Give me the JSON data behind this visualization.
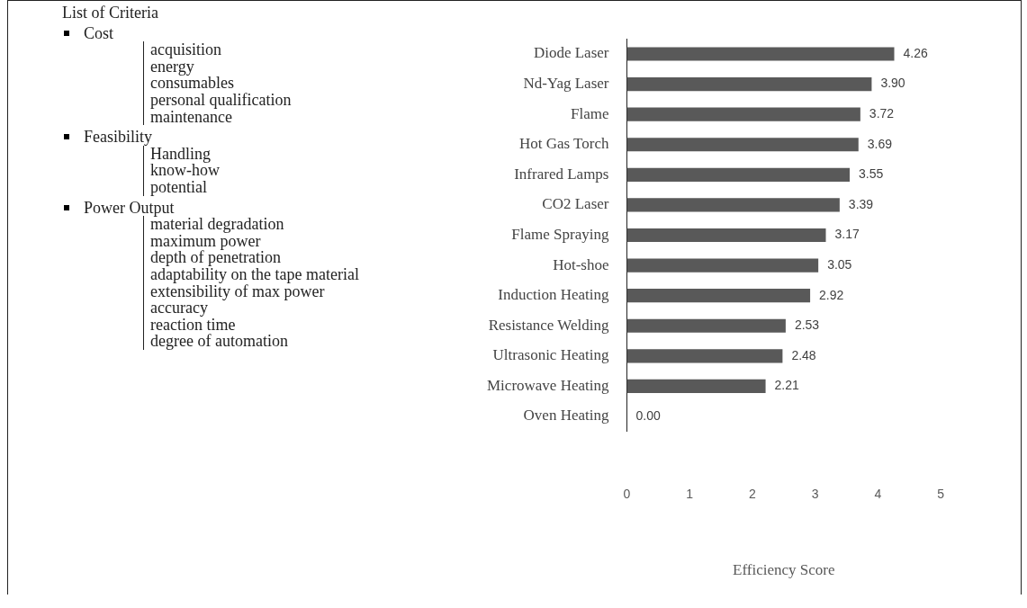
{
  "chart_data": [
    {
      "type": "other",
      "title": "List of Criteria"
    },
    {
      "type": "other",
      "title": "Cost",
      "annotations": [
        "acquisition",
        "energy",
        "consumables",
        "personal qualification",
        "maintenance"
      ]
    },
    {
      "type": "other",
      "title": "Feasibility",
      "annotations": [
        "Handling",
        "know-how",
        "potential"
      ]
    },
    {
      "type": "other",
      "title": "Power Output",
      "annotations": [
        "material degradation",
        "maximum power",
        "depth of penetration",
        "adaptability on the tape material",
        "extensibility of max power",
        "accuracy",
        "reaction time",
        "degree of automation"
      ]
    },
    {
      "type": "bar",
      "orientation": "horizontal",
      "categories": [
        "Diode Laser",
        "Nd-Yag Laser",
        "Flame",
        "Hot Gas Torch",
        "Infrared Lamps",
        "CO2 Laser",
        "Flame Spraying",
        "Hot-shoe",
        "Induction Heating",
        "Resistance Welding",
        "Ultrasonic Heating",
        "Microwave Heating",
        "Oven Heating"
      ],
      "values": [
        4.26,
        3.9,
        3.72,
        3.69,
        3.55,
        3.39,
        3.17,
        3.05,
        2.92,
        2.53,
        2.48,
        2.21,
        0.0
      ],
      "value_labels": [
        "4.26",
        "3.90",
        "3.72",
        "3.69",
        "3.55",
        "3.39",
        "3.17",
        "3.05",
        "2.92",
        "2.53",
        "2.48",
        "2.21",
        "0.00"
      ],
      "color": "#595959",
      "xlim": [
        0,
        5
      ],
      "xticks": [
        0,
        1,
        2,
        3,
        4,
        5
      ],
      "xlabel": "Efficiency Score",
      "grid": false,
      "legend": false
    }
  ]
}
